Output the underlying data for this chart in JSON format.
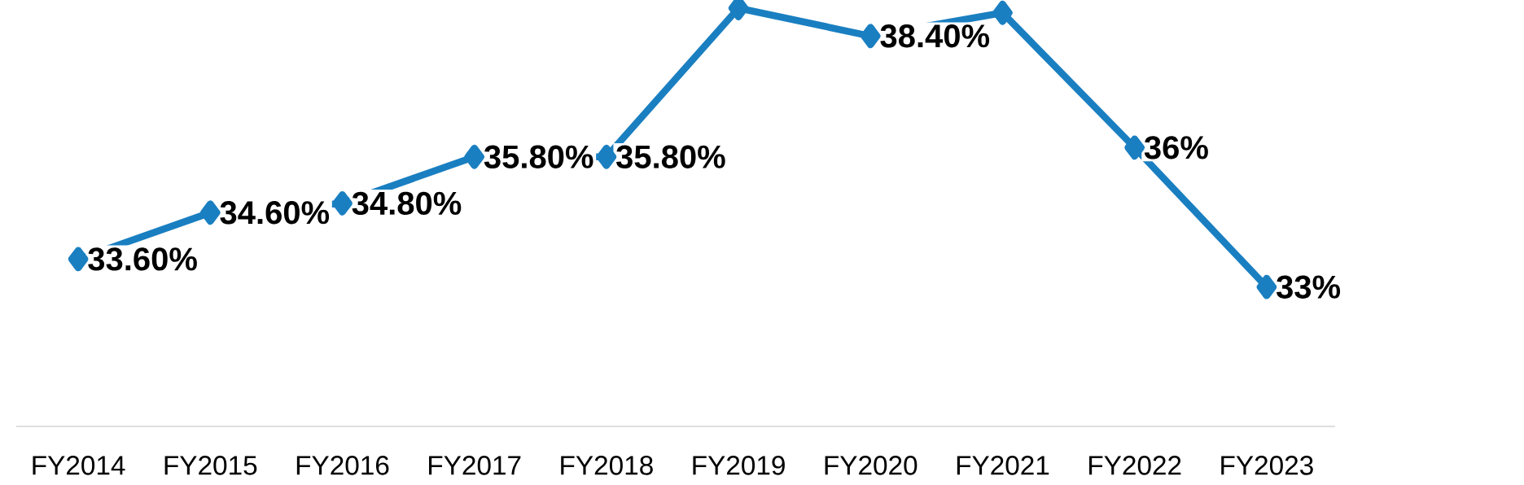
{
  "chart_data": {
    "type": "line",
    "categories": [
      "FY2014",
      "FY2015",
      "FY2016",
      "FY2017",
      "FY2018",
      "FY2019",
      "FY2020",
      "FY2021",
      "FY2022",
      "FY2023"
    ],
    "values": [
      33.6,
      34.6,
      34.8,
      35.8,
      35.8,
      39.0,
      38.4,
      38.9,
      36,
      33
    ],
    "value_labels": [
      "33.60%",
      "34.60%",
      "34.80%",
      "35.80%",
      "35.80%",
      null,
      "38.40%",
      null,
      "36%",
      "33%"
    ],
    "color": "#1a7fc1",
    "marker": "diamond",
    "line_style": "solid",
    "tick_labels": "x",
    "grid": false
  }
}
